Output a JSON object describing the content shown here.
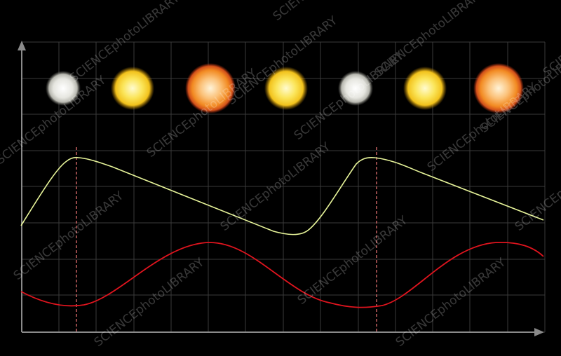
{
  "diagram": {
    "background": "#000000",
    "grid_color": "#3a3a3a",
    "axis_color": "#8a8a8a",
    "brightness_curve_color": "#e8f59a",
    "velocity_curve_color": "#e0141e",
    "marker_line_color": "#e07070",
    "stars": [
      {
        "phase": "minimum",
        "color": "#dcdcd6"
      },
      {
        "phase": "intermediate",
        "color": "#f7dc45"
      },
      {
        "phase": "maximum",
        "color": "#f59a2c"
      },
      {
        "phase": "intermediate",
        "color": "#f7dc45"
      },
      {
        "phase": "minimum",
        "color": "#dcdcd6"
      },
      {
        "phase": "intermediate",
        "color": "#f7dc45"
      },
      {
        "phase": "maximum",
        "color": "#f59a2c"
      }
    ],
    "watermark": "SCIENCEphotoLIBRARY"
  }
}
